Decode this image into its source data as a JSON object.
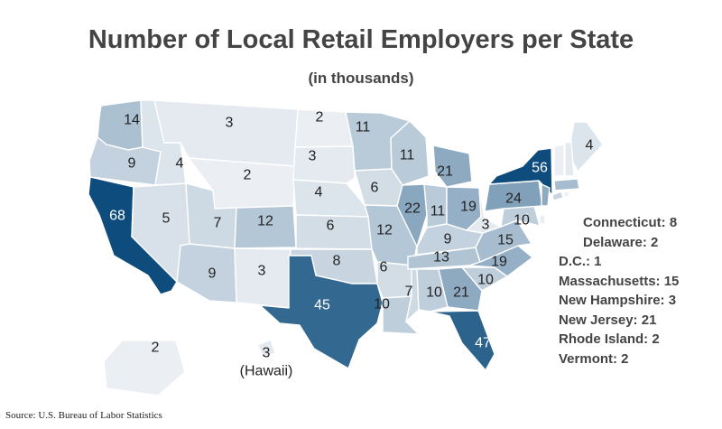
{
  "title": "Number of Local Retail Employers per State",
  "subtitle": "(in thousands)",
  "hawaii_label": "(Hawaii)",
  "source": "Source: U.S. Bureau of Labor Statistics",
  "color_scale": {
    "min": 1,
    "max": 56,
    "low_color": "#f4f6f8",
    "high_color": "#0d4c7d",
    "light_text": "#222222",
    "dark_text": "#ffffff"
  },
  "chart_data": {
    "type": "choropleth",
    "title": "Number of Local Retail Employers per State",
    "subtitle": "(in thousands)",
    "values": {
      "Washington": 14,
      "Oregon": 9,
      "California": 68,
      "Idaho": 4,
      "Nevada": 5,
      "Montana": 3,
      "Wyoming": 2,
      "Utah": 7,
      "Colorado": 12,
      "Arizona": 9,
      "New Mexico": 3,
      "North Dakota": 2,
      "South Dakota": 3,
      "Nebraska": 4,
      "Kansas": 6,
      "Oklahoma": 8,
      "Texas": 45,
      "Minnesota": 11,
      "Iowa": 6,
      "Missouri": 12,
      "Arkansas": 6,
      "Louisiana": 10,
      "Wisconsin": 11,
      "Illinois": 22,
      "Michigan": 21,
      "Indiana": 11,
      "Ohio": 19,
      "Kentucky": 9,
      "Tennessee": 13,
      "Mississippi": 7,
      "Alabama": 10,
      "Georgia": 21,
      "Florida": 47,
      "South Carolina": 10,
      "North Carolina": 19,
      "Virginia": 15,
      "West Virginia": 3,
      "Maryland": 10,
      "Pennsylvania": 24,
      "New York": 56,
      "Maine": 4,
      "Alaska": 2,
      "Hawaii": 3,
      "Connecticut": 8,
      "Delaware": 2,
      "D.C.": 1,
      "Massachusetts": 15,
      "New Hampshire": 3,
      "New Jersey": 21,
      "Rhode Island": 2,
      "Vermont": 2
    }
  },
  "legend": [
    {
      "label": "Connecticut: 8",
      "indent": true
    },
    {
      "label": "Delaware: 2",
      "indent": true
    },
    {
      "label": "D.C.: 1",
      "indent": false
    },
    {
      "label": "Massachusetts: 15",
      "indent": false
    },
    {
      "label": "New Hampshire: 3",
      "indent": false
    },
    {
      "label": "New Jersey: 21",
      "indent": false
    },
    {
      "label": "Rhode Island: 2",
      "indent": false
    },
    {
      "label": "Vermont: 2",
      "indent": false
    }
  ]
}
